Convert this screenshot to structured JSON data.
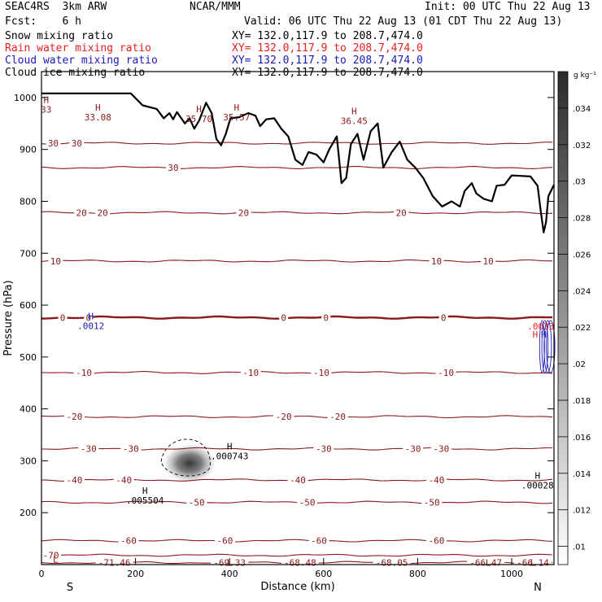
{
  "header": {
    "model": "SEAC4RS  3km ARW",
    "fcst": "Fcst:    6 h",
    "center": "NCAR/MMM",
    "init": "Init: 00 UTC Thu 22 Aug 13",
    "valid": "Valid: 06 UTC Thu 22 Aug 13 (01 CDT Thu 22 Aug 13)",
    "fields": [
      {
        "name": "Snow mixing ratio",
        "xy": "XY= 132.0,117.9 to 208.7,474.0",
        "color": "#000000"
      },
      {
        "name": "Rain water mixing ratio",
        "xy": "XY= 132.0,117.9 to 208.7,474.0",
        "color": "#e8201e"
      },
      {
        "name": "Cloud water mixing ratio",
        "xy": "XY= 132.0,117.9 to 208.7,474.0",
        "color": "#1a1ab8"
      },
      {
        "name": "Cloud ice mixing ratio",
        "xy": "XY= 132.0,117.9 to 208.7,474.0",
        "color": "#000000"
      }
    ]
  },
  "chart_data": {
    "type": "cross-section contour",
    "xlabel": "Distance (km)",
    "ylabel": "Pressure (hPa)",
    "xlim": [
      0,
      1090
    ],
    "ylim": [
      1050,
      100
    ],
    "x_ticks": [
      "0",
      "200",
      "400",
      "600",
      "800",
      "1000"
    ],
    "x_tick_values": [
      0,
      200,
      400,
      600,
      800,
      1000
    ],
    "y_ticks": [
      "200",
      "300",
      "400",
      "500",
      "600",
      "700",
      "800",
      "900",
      "1000"
    ],
    "y_tick_values": [
      200,
      300,
      400,
      500,
      600,
      700,
      800,
      900,
      1000
    ],
    "end_labels": {
      "left": "S",
      "right": "N"
    },
    "colorbar": {
      "unit": "g kg⁻¹",
      "ticks": [
        ".01",
        ".012",
        ".014",
        ".016",
        ".018",
        ".02",
        ".022",
        ".024",
        ".026",
        ".028",
        ".03",
        ".032",
        ".034"
      ],
      "tick_values": [
        0.01,
        0.012,
        0.014,
        0.016,
        0.018,
        0.02,
        0.022,
        0.024,
        0.026,
        0.028,
        0.03,
        0.032,
        0.034
      ],
      "range": [
        0.009,
        0.036
      ]
    },
    "isotherm_color": "#8b1a1a",
    "temperature_contours": [
      {
        "p": 104,
        "labels": [
          {
            "x": 155,
            "t": "-71.46"
          },
          {
            "x": 400,
            "t": "-69.33"
          },
          {
            "x": 550,
            "t": "-68.48"
          },
          {
            "x": 745,
            "t": "-68.05"
          },
          {
            "x": 945,
            "t": "-66.47"
          },
          {
            "x": 1045,
            "t": "-66.14"
          }
        ]
      },
      {
        "p": 118,
        "labels": [
          {
            "x": 20,
            "t": "-70"
          }
        ]
      },
      {
        "p": 146,
        "labels": [
          {
            "x": 185,
            "t": "-60"
          },
          {
            "x": 390,
            "t": "-60"
          },
          {
            "x": 590,
            "t": "-60"
          },
          {
            "x": 840,
            "t": "-60"
          }
        ]
      },
      {
        "p": 220,
        "labels": [
          {
            "x": 330,
            "t": "-50"
          },
          {
            "x": 565,
            "t": "-50"
          },
          {
            "x": 830,
            "t": "-50"
          }
        ]
      },
      {
        "p": 263,
        "labels": [
          {
            "x": 70,
            "t": "-40"
          },
          {
            "x": 175,
            "t": "-40"
          },
          {
            "x": 545,
            "t": "-40"
          },
          {
            "x": 840,
            "t": "-40"
          }
        ]
      },
      {
        "p": 323,
        "labels": [
          {
            "x": 100,
            "t": "-30"
          },
          {
            "x": 190,
            "t": "-30"
          },
          {
            "x": 600,
            "t": "-30"
          },
          {
            "x": 790,
            "t": "-30"
          },
          {
            "x": 850,
            "t": "-30"
          }
        ]
      },
      {
        "p": 385,
        "labels": [
          {
            "x": 70,
            "t": "-20"
          },
          {
            "x": 515,
            "t": "-20"
          },
          {
            "x": 630,
            "t": "-20"
          }
        ]
      },
      {
        "p": 470,
        "labels": [
          {
            "x": 90,
            "t": "-10"
          },
          {
            "x": 445,
            "t": "-10"
          },
          {
            "x": 595,
            "t": "-10"
          },
          {
            "x": 860,
            "t": "-10"
          }
        ]
      },
      {
        "p": 576,
        "bold": true,
        "labels": [
          {
            "x": 45,
            "t": "0"
          },
          {
            "x": 100,
            "t": "0"
          },
          {
            "x": 515,
            "t": "0"
          },
          {
            "x": 605,
            "t": "0"
          },
          {
            "x": 855,
            "t": "0"
          }
        ]
      },
      {
        "p": 685,
        "labels": [
          {
            "x": 30,
            "t": "10"
          },
          {
            "x": 840,
            "t": "10"
          },
          {
            "x": 950,
            "t": "10"
          }
        ]
      },
      {
        "p": 778,
        "labels": [
          {
            "x": 85,
            "t": "20"
          },
          {
            "x": 130,
            "t": "20"
          },
          {
            "x": 430,
            "t": "20"
          },
          {
            "x": 765,
            "t": "20"
          }
        ]
      },
      {
        "p": 865,
        "labels": [
          {
            "x": 280,
            "t": "30"
          }
        ]
      },
      {
        "p": 912,
        "labels": [
          {
            "x": 25,
            "t": "30"
          },
          {
            "x": 75,
            "t": "30"
          }
        ]
      }
    ],
    "extrema": [
      {
        "x": 220,
        "p": 236,
        "mark": "H",
        "value": ".005504",
        "color": "#000000"
      },
      {
        "x": 400,
        "p": 322,
        "mark": "H",
        "value": ".000743",
        "color": "#000000"
      },
      {
        "x": 1055,
        "p": 265,
        "mark": "H",
        "value": ".00028",
        "color": "#000000"
      },
      {
        "x": 105,
        "p": 573,
        "mark": "H",
        "value": ".0012",
        "color": "#1a1ab8"
      },
      {
        "x": 1050,
        "p": 537,
        "mark": "H",
        "value": "",
        "color": "#e8201e"
      },
      {
        "x": 1068,
        "p": 537,
        "mark": "H",
        "value": "",
        "color": "#1a1ab8"
      },
      {
        "x": 1062,
        "p": 553,
        "mark": "",
        "value": ".0033",
        "color": "#e8201e"
      },
      {
        "x": 10,
        "p": 990,
        "mark": "H",
        "value": "33",
        "color": "#8b1a1a"
      },
      {
        "x": 120,
        "p": 975,
        "mark": "H",
        "value": "33.08",
        "color": "#8b1a1a"
      },
      {
        "x": 335,
        "p": 972,
        "mark": "H",
        "value": "35.70",
        "color": "#8b1a1a"
      },
      {
        "x": 415,
        "p": 975,
        "mark": "H",
        "value": "35.57",
        "color": "#8b1a1a"
      },
      {
        "x": 665,
        "p": 968,
        "mark": "H",
        "value": "36.45",
        "color": "#8b1a1a"
      },
      {
        "x": 400,
        "p": 98,
        "mark": "L",
        "value": "",
        "color": "#8b1a1a"
      },
      {
        "x": 950,
        "p": 98,
        "mark": "L",
        "value": "",
        "color": "#8b1a1a"
      },
      {
        "x": 1045,
        "p": 98,
        "mark": "L",
        "value": "",
        "color": "#8b1a1a"
      },
      {
        "x": 30,
        "p": 104,
        "mark": "L",
        "value": "",
        "color": "#8b1a1a"
      }
    ],
    "ice_blob": {
      "x": 315,
      "p": 295,
      "value": 0.036
    },
    "terrain": [
      [
        0,
        1008
      ],
      [
        190,
        1008
      ],
      [
        215,
        985
      ],
      [
        245,
        978
      ],
      [
        260,
        960
      ],
      [
        272,
        970
      ],
      [
        280,
        958
      ],
      [
        288,
        972
      ],
      [
        305,
        950
      ],
      [
        315,
        960
      ],
      [
        325,
        940
      ],
      [
        335,
        955
      ],
      [
        350,
        990
      ],
      [
        362,
        970
      ],
      [
        372,
        920
      ],
      [
        382,
        908
      ],
      [
        392,
        930
      ],
      [
        402,
        960
      ],
      [
        420,
        962
      ],
      [
        440,
        970
      ],
      [
        455,
        965
      ],
      [
        465,
        945
      ],
      [
        478,
        958
      ],
      [
        495,
        960
      ],
      [
        510,
        940
      ],
      [
        525,
        925
      ],
      [
        540,
        880
      ],
      [
        555,
        870
      ],
      [
        568,
        895
      ],
      [
        585,
        890
      ],
      [
        600,
        875
      ],
      [
        612,
        900
      ],
      [
        628,
        925
      ],
      [
        638,
        835
      ],
      [
        648,
        845
      ],
      [
        658,
        910
      ],
      [
        672,
        930
      ],
      [
        685,
        880
      ],
      [
        700,
        935
      ],
      [
        715,
        950
      ],
      [
        727,
        865
      ],
      [
        745,
        895
      ],
      [
        762,
        915
      ],
      [
        778,
        880
      ],
      [
        795,
        865
      ],
      [
        812,
        845
      ],
      [
        832,
        810
      ],
      [
        852,
        790
      ],
      [
        872,
        800
      ],
      [
        890,
        790
      ],
      [
        900,
        820
      ],
      [
        915,
        835
      ],
      [
        925,
        815
      ],
      [
        940,
        805
      ],
      [
        958,
        800
      ],
      [
        968,
        830
      ],
      [
        985,
        832
      ],
      [
        1000,
        850
      ],
      [
        1040,
        848
      ],
      [
        1055,
        830
      ],
      [
        1062,
        780
      ],
      [
        1068,
        740
      ],
      [
        1073,
        760
      ],
      [
        1078,
        810
      ],
      [
        1090,
        832
      ]
    ]
  }
}
